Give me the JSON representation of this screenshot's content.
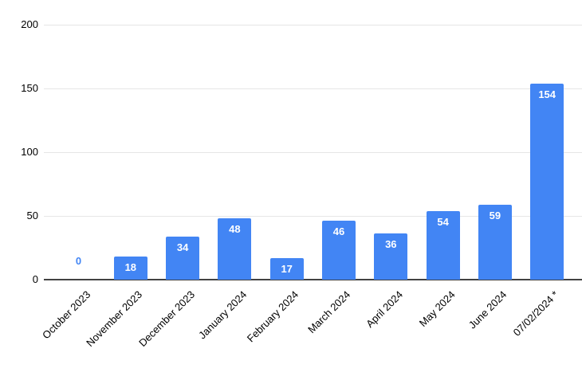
{
  "chart_data": {
    "type": "bar",
    "title": "",
    "xlabel": "",
    "ylabel": "",
    "categories": [
      "October 2023",
      "November 2023",
      "December 2023",
      "January 2024",
      "February 2024",
      "March 2024",
      "April 2024",
      "May 2024",
      "June 2024",
      "07/02/2024 *"
    ],
    "values": [
      0,
      18,
      34,
      48,
      17,
      46,
      36,
      54,
      59,
      154
    ],
    "ylim": [
      0,
      200
    ],
    "yticks": [
      0,
      50,
      100,
      150,
      200
    ],
    "grid": true,
    "legend": "none",
    "bar_color": "#4285f4",
    "data_label_color_inside": "#ffffff",
    "data_label_color_zero": "#4285f4",
    "axis_line_color": "#424242",
    "gridline_color": "#e6e6e6",
    "tick_label_color": "#000000"
  }
}
